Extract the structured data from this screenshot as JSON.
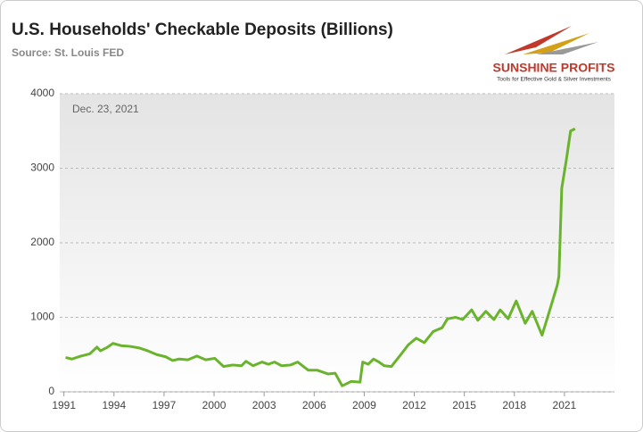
{
  "chart_data": {
    "type": "line",
    "title": "U.S. Households' Checkable Deposits (Billions)",
    "subtitle": "Source: St. Louis FED",
    "brand": "SUNSHINE PROFITS",
    "tagline": "Tools for Effective Gold & Silver Investments",
    "annotation": "Dec. 23, 2021",
    "x": [
      1991.1,
      1991.48,
      1992.02,
      1992.55,
      1992.98,
      1993.19,
      1993.62,
      1993.94,
      1994.42,
      1994.96,
      1995.49,
      1996.03,
      1996.56,
      1997.1,
      1997.52,
      1997.9,
      1998.43,
      1998.97,
      1999.5,
      2000.04,
      2000.57,
      2001.11,
      2001.64,
      2001.91,
      2002.34,
      2002.87,
      2003.25,
      2003.62,
      2004.05,
      2004.58,
      2005.01,
      2005.65,
      2006.19,
      2006.83,
      2007.26,
      2007.68,
      2008.22,
      2008.75,
      2008.91,
      2009.24,
      2009.56,
      2009.88,
      2010.2,
      2010.63,
      2011.16,
      2011.64,
      2012.12,
      2012.6,
      2013.14,
      2013.67,
      2013.99,
      2014.48,
      2014.9,
      2015.44,
      2015.81,
      2016.29,
      2016.78,
      2017.15,
      2017.63,
      2018.11,
      2018.65,
      2019.07,
      2019.66,
      2020.14,
      2020.57,
      2020.67,
      2020.84,
      2021.1,
      2021.37,
      2021.64
    ],
    "series": [
      {
        "color": "#6ab42d",
        "values": [
          460,
          440,
          480,
          510,
          600,
          550,
          600,
          650,
          620,
          610,
          590,
          550,
          500,
          470,
          420,
          440,
          430,
          480,
          430,
          450,
          340,
          360,
          350,
          410,
          350,
          400,
          370,
          400,
          350,
          360,
          400,
          290,
          290,
          240,
          250,
          80,
          140,
          130,
          400,
          370,
          440,
          400,
          350,
          340,
          490,
          630,
          720,
          660,
          810,
          860,
          980,
          1000,
          970,
          1100,
          960,
          1080,
          970,
          1100,
          980,
          1220,
          920,
          1080,
          760,
          1110,
          1430,
          1550,
          2730,
          3090,
          3500,
          3530
        ]
      }
    ],
    "xlim": [
      1990.75,
      2024
    ],
    "xticks": [
      1991,
      1994,
      1997,
      2000,
      2003,
      2006,
      2009,
      2012,
      2015,
      2018,
      2021
    ],
    "ylim": [
      0,
      4000
    ],
    "yticks": [
      0,
      1000,
      2000,
      3000,
      4000
    ],
    "grid": true
  }
}
